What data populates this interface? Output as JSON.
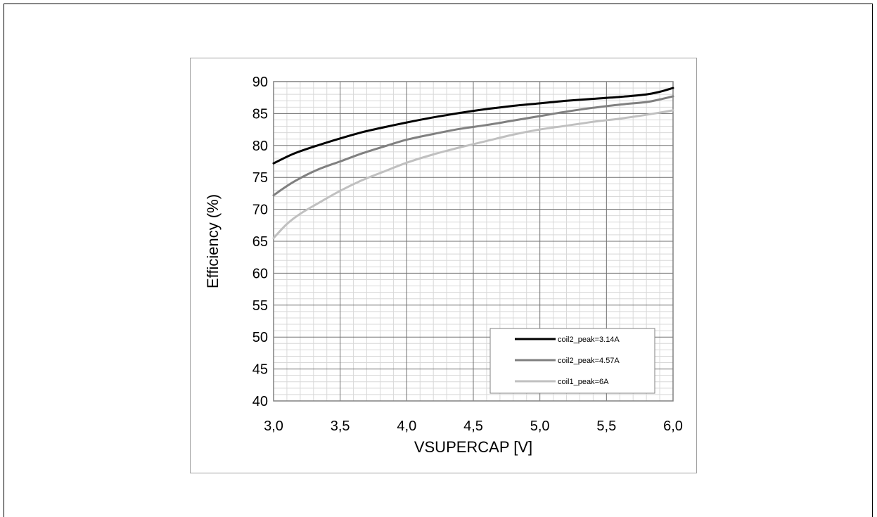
{
  "chart_data": {
    "type": "line",
    "title": "",
    "xlabel": "VSUPERCAP [V]",
    "ylabel": "Efficiency (%)",
    "xlim": [
      3.0,
      6.0
    ],
    "ylim": [
      40,
      90
    ],
    "x_ticks": [
      "3,0",
      "3,5",
      "4,0",
      "4,5",
      "5,0",
      "5,5",
      "6,0"
    ],
    "y_ticks": [
      "40",
      "45",
      "50",
      "55",
      "60",
      "65",
      "70",
      "75",
      "80",
      "85",
      "90"
    ],
    "grid": true,
    "legend_position": "bottom-right",
    "series": [
      {
        "name": "coil2_peak=3.14A",
        "color": "#000000",
        "x": [
          3.0,
          3.15,
          3.33,
          3.5,
          3.67,
          3.84,
          4.0,
          4.2,
          4.4,
          4.6,
          4.8,
          5.0,
          5.2,
          5.4,
          5.6,
          5.8,
          5.9,
          6.0
        ],
        "y": [
          77.2,
          78.7,
          80.0,
          81.1,
          82.1,
          82.9,
          83.6,
          84.4,
          85.1,
          85.7,
          86.2,
          86.6,
          87.0,
          87.3,
          87.6,
          88.0,
          88.4,
          89.0
        ]
      },
      {
        "name": "coil2_peak=4.57A",
        "color": "#808080",
        "x": [
          3.0,
          3.15,
          3.33,
          3.5,
          3.67,
          3.84,
          4.0,
          4.2,
          4.4,
          4.6,
          4.8,
          5.0,
          5.2,
          5.4,
          5.6,
          5.8,
          5.9,
          6.0
        ],
        "y": [
          72.2,
          74.3,
          76.2,
          77.5,
          78.8,
          79.9,
          80.9,
          81.8,
          82.6,
          83.2,
          83.9,
          84.6,
          85.3,
          85.9,
          86.4,
          86.8,
          87.2,
          87.7
        ]
      },
      {
        "name": "coil1_peak=6A",
        "color": "#c0c0c0",
        "x": [
          3.0,
          3.1,
          3.2,
          3.33,
          3.5,
          3.67,
          3.84,
          4.0,
          4.2,
          4.4,
          4.6,
          4.8,
          5.0,
          5.2,
          5.4,
          5.6,
          5.8,
          6.0
        ],
        "y": [
          65.5,
          67.7,
          69.3,
          70.9,
          72.9,
          74.6,
          76.0,
          77.3,
          78.6,
          79.7,
          80.7,
          81.7,
          82.5,
          83.1,
          83.7,
          84.2,
          84.8,
          85.5
        ]
      }
    ]
  }
}
